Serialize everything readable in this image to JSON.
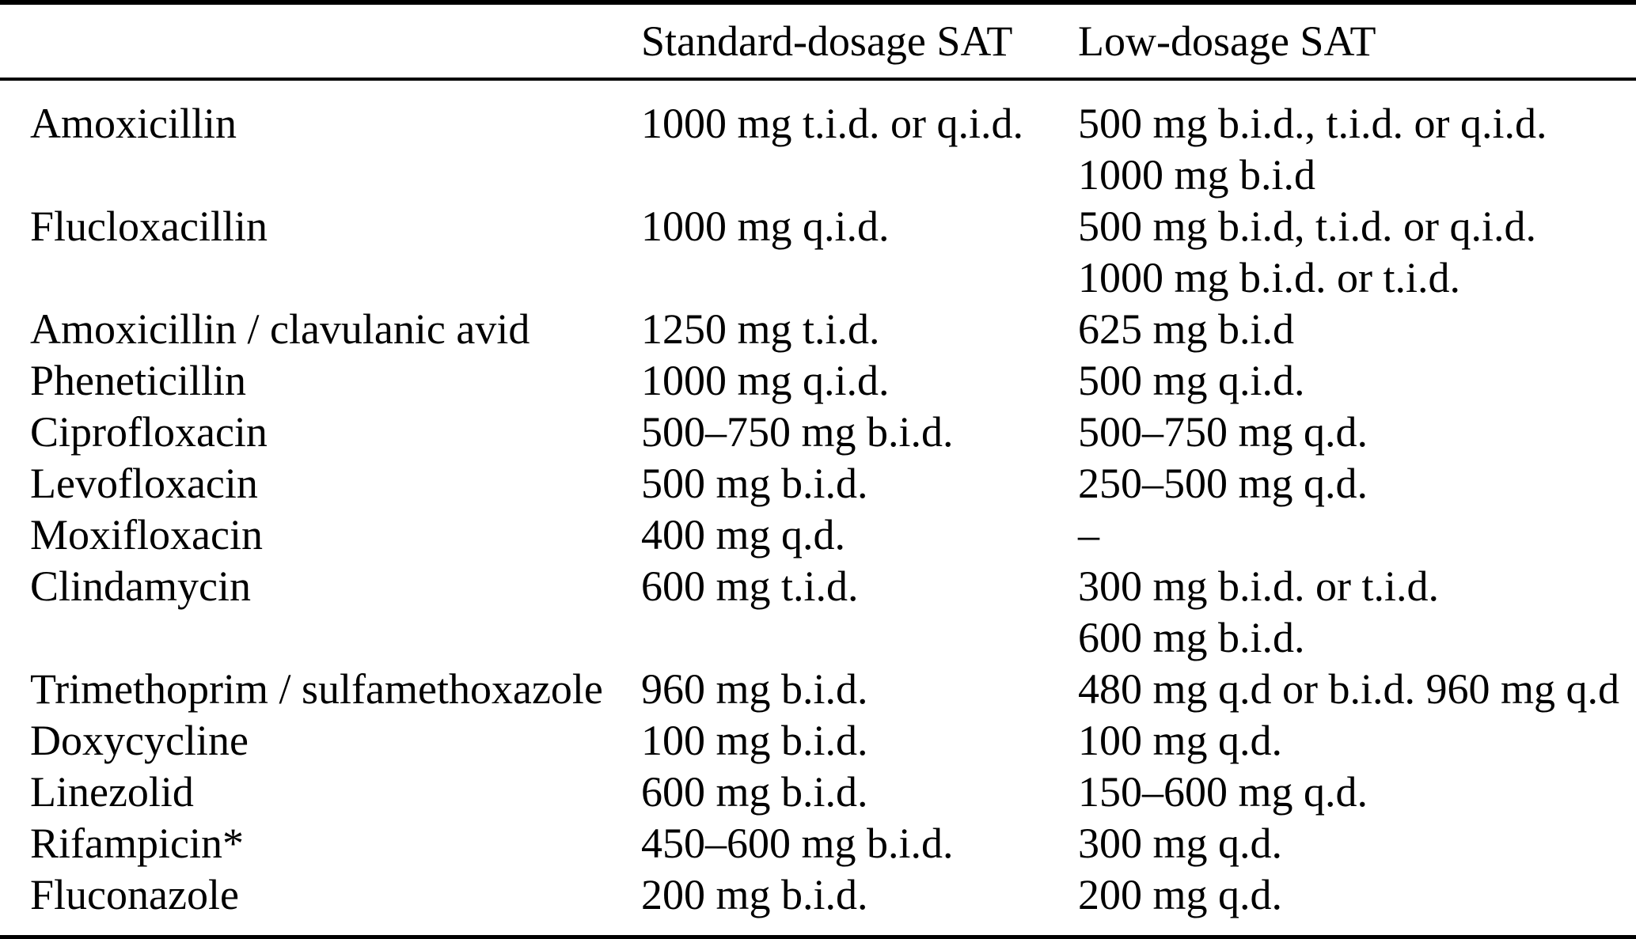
{
  "page": {
    "background_color": "#ffffff",
    "text_color": "#000000",
    "rule_color": "#000000"
  },
  "table": {
    "columns": [
      {
        "key": "drug",
        "label": ""
      },
      {
        "key": "standard",
        "label": "Standard-dosage SAT"
      },
      {
        "key": "low",
        "label": "Low-dosage SAT"
      }
    ],
    "rows": [
      {
        "drug": "Amoxicillin",
        "standard": "1000 mg t.i.d. or q.i.d.",
        "low": "500 mg b.i.d., t.i.d. or q.i.d.\n1000 mg b.i.d"
      },
      {
        "drug": "Flucloxacillin",
        "standard": "1000 mg q.i.d.",
        "low": "500 mg b.i.d, t.i.d. or q.i.d.\n1000 mg b.i.d. or t.i.d."
      },
      {
        "drug": "Amoxicillin / clavulanic avid",
        "standard": "1250 mg t.i.d.",
        "low": "625 mg b.i.d"
      },
      {
        "drug": "Pheneticillin",
        "standard": "1000 mg q.i.d.",
        "low": "500 mg q.i.d."
      },
      {
        "drug": "Ciprofloxacin",
        "standard": "500–750 mg b.i.d.",
        "low": "500–750 mg q.d."
      },
      {
        "drug": "Levofloxacin",
        "standard": "500 mg b.i.d.",
        "low": "250–500 mg q.d."
      },
      {
        "drug": "Moxifloxacin",
        "standard": "400 mg q.d.",
        "low": "–"
      },
      {
        "drug": "Clindamycin",
        "standard": "600 mg t.i.d.",
        "low": "300 mg b.i.d. or t.i.d.\n600 mg b.i.d."
      },
      {
        "drug": "Trimethoprim / sulfamethoxazole",
        "standard": "960 mg b.i.d.",
        "low": "480 mg q.d or b.i.d. 960 mg q.d"
      },
      {
        "drug": "Doxycycline",
        "standard": "100 mg b.i.d.",
        "low": "100 mg q.d."
      },
      {
        "drug": "Linezolid",
        "standard": "600 mg b.i.d.",
        "low": "150–600 mg q.d."
      },
      {
        "drug": "Rifampicin*",
        "standard": "450–600 mg b.i.d.",
        "low": "300 mg q.d."
      },
      {
        "drug": "Fluconazole",
        "standard": "200 mg b.i.d.",
        "low": "200 mg q.d."
      }
    ]
  }
}
